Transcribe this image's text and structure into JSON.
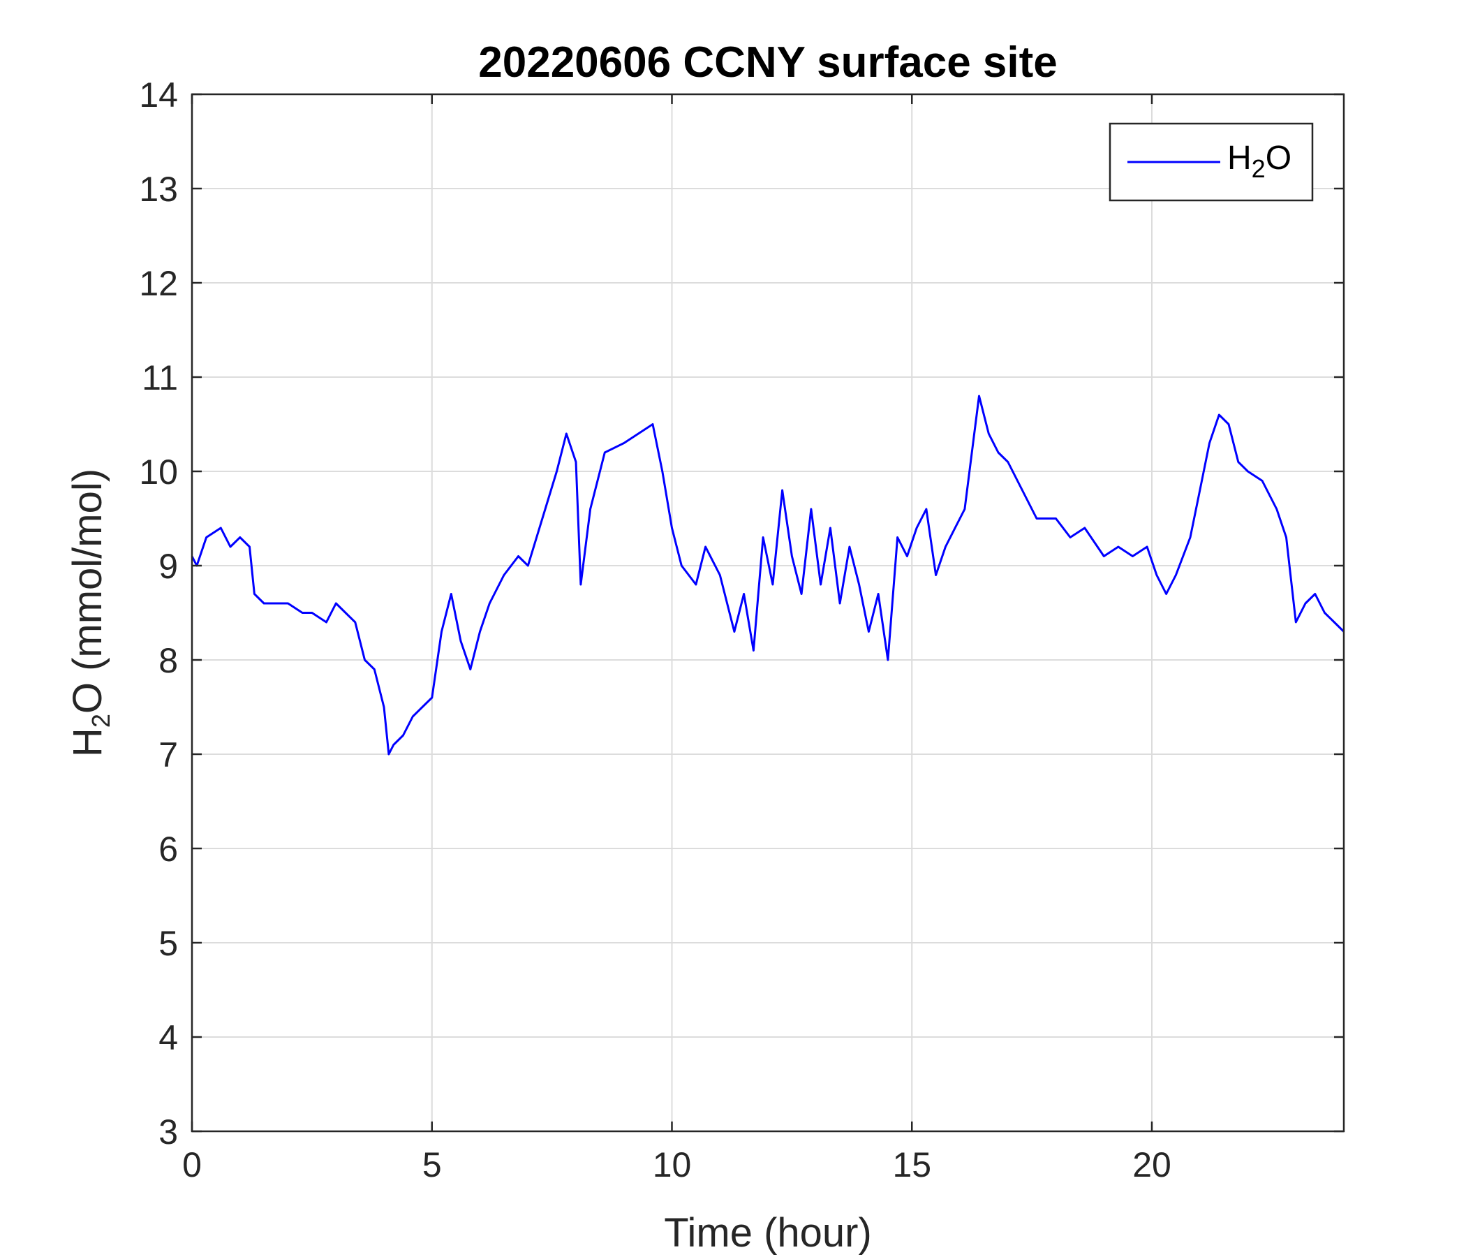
{
  "chart_data": {
    "type": "line",
    "title": "20220606 CCNY surface site",
    "xlabel": "Time (hour)",
    "ylabel": {
      "pre": "H",
      "sub": "2",
      "post": "O (mmol/mol)"
    },
    "xlim": [
      0,
      24
    ],
    "ylim": [
      3,
      14
    ],
    "xticks": [
      0,
      5,
      10,
      15,
      20
    ],
    "yticks": [
      3,
      4,
      5,
      6,
      7,
      8,
      9,
      10,
      11,
      12,
      13,
      14
    ],
    "grid": true,
    "legend_position": "top-right",
    "series": [
      {
        "name": {
          "pre": "H",
          "sub": "2",
          "post": "O"
        },
        "color": "#0000ff",
        "x": [
          0,
          0.1,
          0.3,
          0.6,
          0.8,
          1.0,
          1.2,
          1.3,
          1.5,
          2.0,
          2.3,
          2.5,
          2.8,
          3.0,
          3.2,
          3.4,
          3.6,
          3.8,
          4.0,
          4.1,
          4.2,
          4.4,
          4.6,
          4.8,
          5.0,
          5.2,
          5.4,
          5.6,
          5.8,
          6.0,
          6.2,
          6.5,
          6.8,
          7.0,
          7.3,
          7.6,
          7.8,
          8.0,
          8.1,
          8.3,
          8.6,
          9.0,
          9.3,
          9.6,
          9.8,
          10.0,
          10.2,
          10.5,
          10.7,
          11.0,
          11.3,
          11.5,
          11.7,
          11.9,
          12.1,
          12.3,
          12.5,
          12.7,
          12.9,
          13.1,
          13.3,
          13.5,
          13.7,
          13.9,
          14.1,
          14.3,
          14.5,
          14.7,
          14.9,
          15.1,
          15.3,
          15.5,
          15.7,
          15.9,
          16.1,
          16.3,
          16.4,
          16.6,
          16.8,
          17.0,
          17.3,
          17.6,
          18.0,
          18.3,
          18.6,
          19.0,
          19.3,
          19.6,
          19.9,
          20.1,
          20.3,
          20.5,
          20.8,
          21.0,
          21.2,
          21.4,
          21.6,
          21.8,
          22.0,
          22.3,
          22.6,
          22.8,
          23.0,
          23.2,
          23.4,
          23.6,
          23.8,
          24.0
        ],
        "y": [
          9.1,
          9.0,
          9.3,
          9.4,
          9.2,
          9.3,
          9.2,
          8.7,
          8.6,
          8.6,
          8.5,
          8.5,
          8.4,
          8.6,
          8.5,
          8.4,
          8.0,
          7.9,
          7.5,
          7.0,
          7.1,
          7.2,
          7.4,
          7.5,
          7.6,
          8.3,
          8.7,
          8.2,
          7.9,
          8.3,
          8.6,
          8.9,
          9.1,
          9.0,
          9.5,
          10.0,
          10.4,
          10.1,
          8.8,
          9.6,
          10.2,
          10.3,
          10.4,
          10.5,
          10.0,
          9.4,
          9.0,
          8.8,
          9.2,
          8.9,
          8.3,
          8.7,
          8.1,
          9.3,
          8.8,
          9.8,
          9.1,
          8.7,
          9.6,
          8.8,
          9.4,
          8.6,
          9.2,
          8.8,
          8.3,
          8.7,
          8.0,
          9.3,
          9.1,
          9.4,
          9.6,
          8.9,
          9.2,
          9.4,
          9.6,
          10.4,
          10.8,
          10.4,
          10.2,
          10.1,
          9.8,
          9.5,
          9.5,
          9.3,
          9.4,
          9.1,
          9.2,
          9.1,
          9.2,
          8.9,
          8.7,
          8.9,
          9.3,
          9.8,
          10.3,
          10.6,
          10.5,
          10.1,
          10.0,
          9.9,
          9.6,
          9.3,
          8.4,
          8.6,
          8.7,
          8.5,
          8.4,
          8.3
        ]
      }
    ]
  }
}
